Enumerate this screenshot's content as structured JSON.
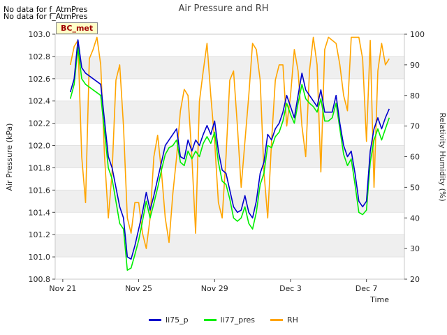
{
  "notes": [
    "No data for f_AtmPres",
    "No data for f_AtmPres"
  ],
  "badge": "BC_met",
  "chart_data": {
    "type": "line",
    "title": "Air Pressure and RH",
    "xlabel": "Time",
    "ylabel_left": "Air Pressure (kPa)",
    "ylabel_right": "Relativity Humidity (%)",
    "x_range_days": [
      -0.4,
      18.0
    ],
    "x_ticks": [
      {
        "label": "Nov 21",
        "day": 0
      },
      {
        "label": "Nov 25",
        "day": 4
      },
      {
        "label": "Nov 29",
        "day": 8
      },
      {
        "label": "Dec 3",
        "day": 12
      },
      {
        "label": "Dec 7",
        "day": 16
      }
    ],
    "ylim_left": [
      100.8,
      103.0
    ],
    "yticks_left": [
      "100.8",
      "101.0",
      "101.2",
      "101.4",
      "101.6",
      "101.8",
      "102.0",
      "102.2",
      "102.4",
      "102.6",
      "102.8",
      "103.0"
    ],
    "ylim_right": [
      20,
      100
    ],
    "yticks_right": [
      "20",
      "30",
      "40",
      "50",
      "60",
      "70",
      "80",
      "90",
      "100"
    ],
    "grid": "horizontal bands",
    "legend_position": "bottom",
    "colors": {
      "li75_p": "#0000cc",
      "li77_pres": "#00ee00",
      "RH": "#ffa500",
      "band": "#efefef"
    },
    "series": [
      {
        "name": "li75_p",
        "axis": "left",
        "x": [
          0.4,
          0.6,
          0.8,
          1.0,
          1.2,
          1.6,
          2.0,
          2.4,
          2.6,
          3.0,
          3.2,
          3.4,
          3.6,
          3.8,
          4.0,
          4.2,
          4.4,
          4.6,
          4.8,
          5.0,
          5.2,
          5.4,
          5.6,
          5.8,
          6.0,
          6.2,
          6.4,
          6.6,
          6.8,
          7.0,
          7.2,
          7.4,
          7.6,
          7.8,
          8.0,
          8.2,
          8.4,
          8.6,
          8.8,
          9.0,
          9.2,
          9.4,
          9.6,
          9.8,
          10.0,
          10.2,
          10.4,
          10.6,
          10.8,
          11.0,
          11.2,
          11.4,
          11.6,
          11.8,
          12.0,
          12.2,
          12.4,
          12.6,
          12.8,
          13.0,
          13.2,
          13.4,
          13.6,
          13.8,
          14.0,
          14.2,
          14.4,
          14.6,
          14.8,
          15.0,
          15.2,
          15.4,
          15.6,
          15.8,
          16.0,
          16.2,
          16.4,
          16.6,
          16.8,
          17.0,
          17.2
        ],
        "values": [
          102.48,
          102.6,
          102.95,
          102.7,
          102.65,
          102.6,
          102.55,
          101.9,
          101.8,
          101.45,
          101.35,
          101.0,
          100.98,
          101.1,
          101.25,
          101.4,
          101.58,
          101.42,
          101.55,
          101.7,
          101.85,
          102.0,
          102.05,
          102.1,
          102.15,
          101.9,
          101.88,
          102.05,
          101.95,
          102.05,
          102.0,
          102.1,
          102.18,
          102.1,
          102.22,
          101.95,
          101.78,
          101.75,
          101.6,
          101.45,
          101.4,
          101.42,
          101.55,
          101.4,
          101.35,
          101.5,
          101.75,
          101.85,
          102.1,
          102.05,
          102.15,
          102.2,
          102.3,
          102.45,
          102.35,
          102.25,
          102.45,
          102.65,
          102.5,
          102.45,
          102.4,
          102.35,
          102.5,
          102.3,
          102.3,
          102.3,
          102.45,
          102.2,
          102.0,
          101.9,
          101.95,
          101.75,
          101.5,
          101.45,
          101.5,
          101.95,
          102.15,
          102.25,
          102.15,
          102.25,
          102.33
        ]
      },
      {
        "name": "li77_pres",
        "axis": "left",
        "x": [
          0.4,
          0.6,
          0.8,
          1.0,
          1.2,
          1.6,
          2.0,
          2.4,
          2.6,
          3.0,
          3.2,
          3.4,
          3.6,
          3.8,
          4.0,
          4.2,
          4.4,
          4.6,
          4.8,
          5.0,
          5.2,
          5.4,
          5.6,
          5.8,
          6.0,
          6.2,
          6.4,
          6.6,
          6.8,
          7.0,
          7.2,
          7.4,
          7.6,
          7.8,
          8.0,
          8.2,
          8.4,
          8.6,
          8.8,
          9.0,
          9.2,
          9.4,
          9.6,
          9.8,
          10.0,
          10.2,
          10.4,
          10.6,
          10.8,
          11.0,
          11.2,
          11.4,
          11.6,
          11.8,
          12.0,
          12.2,
          12.4,
          12.6,
          12.8,
          13.0,
          13.2,
          13.4,
          13.6,
          13.8,
          14.0,
          14.2,
          14.4,
          14.6,
          14.8,
          15.0,
          15.2,
          15.4,
          15.6,
          15.8,
          16.0,
          16.2,
          16.4,
          16.6,
          16.8,
          17.0,
          17.2
        ],
        "values": [
          102.42,
          102.55,
          102.88,
          102.6,
          102.55,
          102.5,
          102.45,
          101.8,
          101.7,
          101.3,
          101.25,
          100.88,
          100.9,
          101.02,
          101.15,
          101.32,
          101.5,
          101.35,
          101.48,
          101.62,
          101.78,
          101.92,
          101.98,
          102.0,
          102.05,
          101.85,
          101.82,
          101.95,
          101.88,
          101.95,
          101.9,
          102.02,
          102.08,
          102.02,
          102.12,
          101.85,
          101.68,
          101.65,
          101.52,
          101.35,
          101.32,
          101.35,
          101.45,
          101.3,
          101.25,
          101.4,
          101.65,
          101.75,
          102.0,
          101.98,
          102.08,
          102.12,
          102.22,
          102.38,
          102.28,
          102.2,
          102.38,
          102.55,
          102.42,
          102.38,
          102.35,
          102.3,
          102.42,
          102.22,
          102.22,
          102.25,
          102.38,
          102.15,
          101.92,
          101.82,
          101.88,
          101.65,
          101.4,
          101.38,
          101.42,
          101.85,
          102.05,
          102.15,
          102.05,
          102.15,
          102.25
        ]
      },
      {
        "name": "RH",
        "axis": "right",
        "x": [
          0.4,
          0.6,
          0.8,
          1.0,
          1.2,
          1.4,
          1.6,
          1.8,
          2.0,
          2.2,
          2.4,
          2.6,
          2.8,
          3.0,
          3.2,
          3.4,
          3.6,
          3.8,
          4.0,
          4.2,
          4.4,
          4.6,
          4.8,
          5.0,
          5.2,
          5.4,
          5.6,
          5.8,
          6.0,
          6.2,
          6.4,
          6.6,
          6.8,
          7.0,
          7.2,
          7.4,
          7.6,
          7.8,
          8.0,
          8.2,
          8.4,
          8.6,
          8.8,
          9.0,
          9.2,
          9.4,
          9.6,
          9.8,
          10.0,
          10.2,
          10.4,
          10.6,
          10.8,
          11.0,
          11.2,
          11.4,
          11.6,
          11.8,
          12.0,
          12.2,
          12.4,
          12.6,
          12.8,
          13.0,
          13.2,
          13.4,
          13.6,
          13.8,
          14.0,
          14.2,
          14.4,
          14.6,
          14.8,
          15.0,
          15.2,
          15.4,
          15.6,
          15.8,
          16.0,
          16.2,
          16.4,
          16.6,
          16.8,
          17.0,
          17.2
        ],
        "values": [
          90,
          96,
          98,
          60,
          45,
          92,
          95,
          99,
          90,
          60,
          40,
          55,
          85,
          90,
          70,
          40,
          35,
          45,
          45,
          35,
          30,
          40,
          60,
          67,
          55,
          40,
          32,
          48,
          60,
          75,
          82,
          80,
          60,
          35,
          78,
          88,
          97,
          80,
          65,
          45,
          40,
          60,
          85,
          88,
          70,
          50,
          65,
          80,
          97,
          95,
          85,
          55,
          40,
          65,
          85,
          90,
          90,
          70,
          80,
          95,
          88,
          70,
          60,
          88,
          99,
          90,
          55,
          95,
          99,
          98,
          97,
          90,
          80,
          75,
          99,
          99,
          99,
          92,
          65,
          98,
          50,
          88,
          97,
          90,
          92
        ]
      }
    ]
  }
}
